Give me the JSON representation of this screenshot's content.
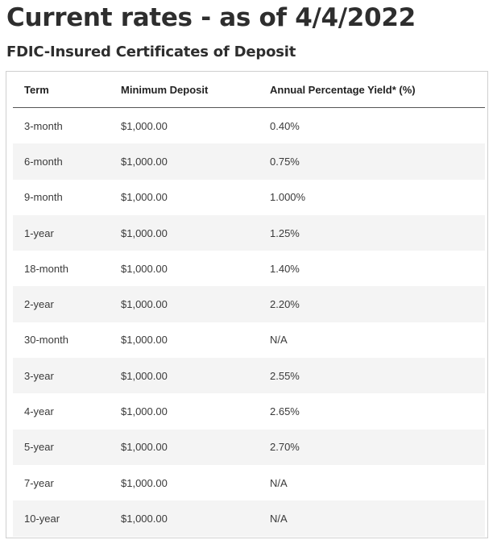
{
  "page_title": "Current rates - as of 4/4/2022",
  "section_title": "FDIC-Insured Certificates of Deposit",
  "table": {
    "headers": {
      "term": "Term",
      "minimum_deposit": "Minimum Deposit",
      "apy": "Annual Percentage Yield* (%)"
    },
    "rows": [
      {
        "term": "3-month",
        "minimum_deposit": "$1,000.00",
        "apy": "0.40%"
      },
      {
        "term": "6-month",
        "minimum_deposit": "$1,000.00",
        "apy": "0.75%"
      },
      {
        "term": "9-month",
        "minimum_deposit": "$1,000.00",
        "apy": "1.000%"
      },
      {
        "term": "1-year",
        "minimum_deposit": "$1,000.00",
        "apy": "1.25%"
      },
      {
        "term": "18-month",
        "minimum_deposit": "$1,000.00",
        "apy": "1.40%"
      },
      {
        "term": "2-year",
        "minimum_deposit": "$1,000.00",
        "apy": "2.20%"
      },
      {
        "term": "30-month",
        "minimum_deposit": "$1,000.00",
        "apy": "N/A"
      },
      {
        "term": "3-year",
        "minimum_deposit": "$1,000.00",
        "apy": "2.55%"
      },
      {
        "term": "4-year",
        "minimum_deposit": "$1,000.00",
        "apy": "2.65%"
      },
      {
        "term": "5-year",
        "minimum_deposit": "$1,000.00",
        "apy": "2.70%"
      },
      {
        "term": "7-year",
        "minimum_deposit": "$1,000.00",
        "apy": "N/A"
      },
      {
        "term": "10-year",
        "minimum_deposit": "$1,000.00",
        "apy": "N/A"
      }
    ]
  }
}
